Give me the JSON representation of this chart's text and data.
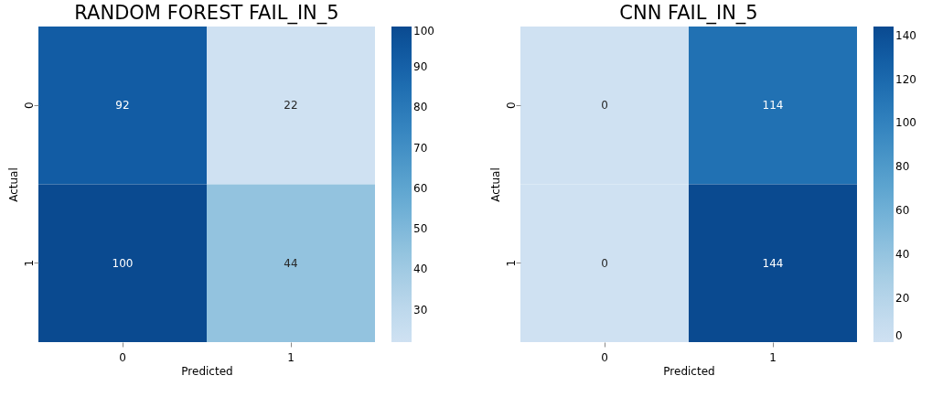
{
  "chart_data": [
    {
      "type": "heatmap",
      "title": "RANDOM FOREST FAIL_IN_5",
      "xlabel": "Predicted",
      "ylabel": "Actual",
      "categories": [
        "0",
        "1"
      ],
      "y_categories": [
        "0",
        "1"
      ],
      "cells": [
        [
          92,
          22
        ],
        [
          100,
          44
        ]
      ],
      "clim": [
        22,
        100
      ],
      "cticks": [
        30,
        40,
        50,
        60,
        70,
        80,
        90,
        100
      ],
      "data_labels": true
    },
    {
      "type": "heatmap",
      "title": "CNN FAIL_IN_5",
      "xlabel": "Predicted",
      "ylabel": "Actual",
      "categories": [
        "0",
        "1"
      ],
      "y_categories": [
        "0",
        "1"
      ],
      "cells": [
        [
          0,
          114
        ],
        [
          0,
          144
        ]
      ],
      "clim": [
        0,
        144
      ],
      "cticks": [
        0,
        20,
        40,
        60,
        80,
        100,
        120,
        140
      ],
      "data_labels": true
    }
  ]
}
